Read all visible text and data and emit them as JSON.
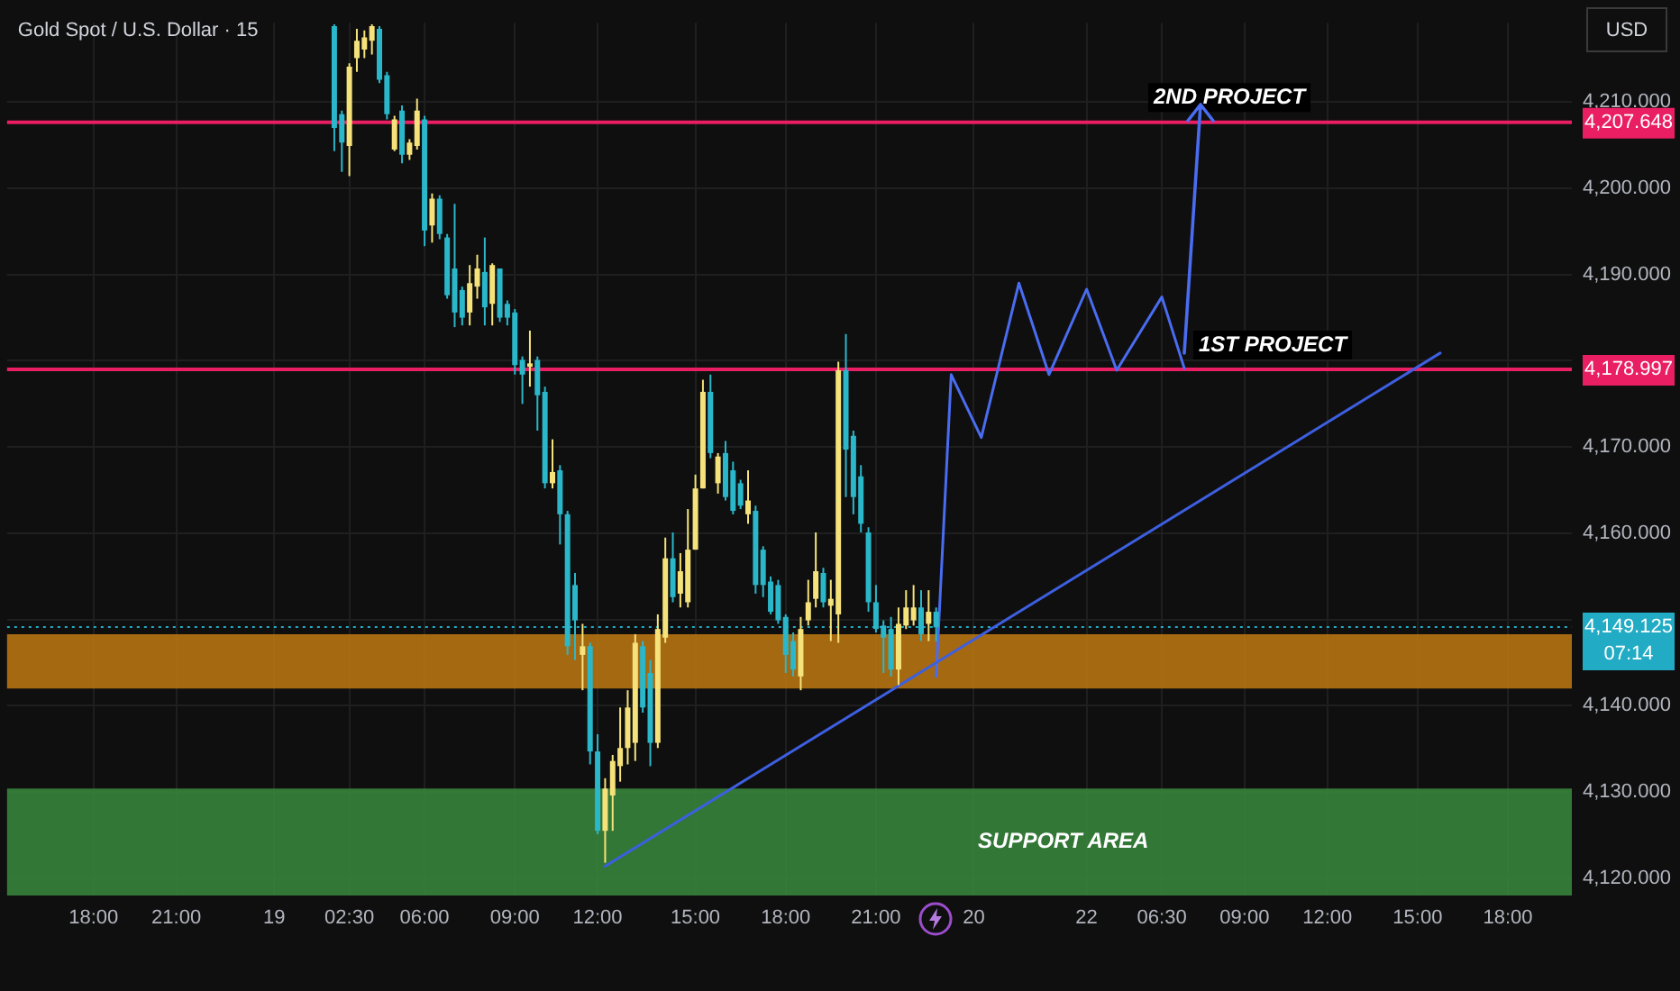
{
  "chart_data": {
    "type": "candlestick",
    "title": "Gold Spot / U.S. Dollar · 15",
    "ylim": [
      4118,
      4219.2
    ],
    "yticks": [
      {
        "value": 4120,
        "label": "4,120.000"
      },
      {
        "value": 4130,
        "label": "4,130.000"
      },
      {
        "value": 4140,
        "label": "4,140.000"
      },
      {
        "value": 4150,
        "label": null
      },
      {
        "value": 4160,
        "label": "4,160.000"
      },
      {
        "value": 4170,
        "label": "4,170.000"
      },
      {
        "value": 4180,
        "label": null
      },
      {
        "value": 4190,
        "label": "4,190.000"
      },
      {
        "value": 4200,
        "label": "4,200.000"
      },
      {
        "value": 4210,
        "label": "4,210.000"
      }
    ],
    "grid": true,
    "categories": [
      null,
      null,
      null,
      null,
      null,
      null,
      null,
      null,
      null,
      null,
      null,
      "18:00",
      null,
      null,
      null,
      null,
      null,
      null,
      null,
      null,
      null,
      null,
      "21:00",
      null,
      null,
      null,
      null,
      null,
      null,
      null,
      null,
      null,
      null,
      null,
      null,
      "19",
      null,
      null,
      null,
      null,
      null,
      null,
      null,
      null,
      null,
      "02:30",
      null,
      null,
      null,
      null,
      null,
      null,
      null,
      null,
      null,
      "06:00",
      null,
      null,
      null,
      null,
      null,
      null,
      null,
      null,
      null,
      null,
      null,
      "09:00",
      null,
      null,
      null,
      null,
      null,
      null,
      null,
      null,
      null,
      null,
      "12:00",
      null,
      null,
      null,
      null,
      null,
      null,
      null,
      null,
      null,
      null,
      null,
      null,
      "15:00",
      null,
      null,
      null,
      null,
      null,
      null,
      null,
      null,
      null,
      null,
      null,
      "18:00",
      null,
      null,
      null,
      null,
      null,
      null,
      null,
      null,
      null,
      null,
      null,
      "21:00",
      null,
      null,
      null,
      null,
      null,
      null,
      null,
      null,
      null,
      null,
      null,
      null,
      "20",
      null,
      null,
      null,
      null,
      null,
      null,
      null,
      null,
      null,
      null,
      null,
      null,
      null,
      null,
      "22",
      null,
      null,
      null,
      null,
      null,
      null,
      null,
      null,
      null,
      "06:30",
      null,
      null,
      null,
      null,
      null,
      null,
      null,
      null,
      null,
      null,
      "09:00",
      null,
      null,
      null,
      null,
      null,
      null,
      null,
      null,
      null,
      null,
      "12:00",
      null,
      null,
      null,
      null,
      null,
      null,
      null,
      null,
      null,
      null,
      null,
      "15:00",
      null,
      null,
      null,
      null,
      null,
      null,
      null,
      null,
      null,
      null,
      null,
      "18:00",
      null,
      null,
      null,
      null,
      null,
      null,
      null,
      null
    ],
    "ohlc": [
      null,
      null,
      null,
      null,
      null,
      null,
      null,
      null,
      null,
      null,
      null,
      null,
      null,
      null,
      null,
      null,
      null,
      null,
      null,
      null,
      null,
      null,
      null,
      null,
      null,
      null,
      null,
      null,
      null,
      null,
      null,
      null,
      null,
      null,
      null,
      null,
      null,
      null,
      null,
      null,
      null,
      null,
      null,
      [
        4218.8,
        4219.0,
        4204.3,
        4207.0
      ],
      [
        4208.6,
        4209.0,
        4201.9,
        4205.3
      ],
      [
        4204.9,
        4214.5,
        4201.4,
        4214.1
      ],
      [
        4215.1,
        4218.5,
        4213.5,
        4217.1
      ],
      [
        4216.1,
        4218.3,
        4215.1,
        4217.5
      ],
      [
        4217.1,
        4219.0,
        4215.5,
        4218.8
      ],
      [
        4218.5,
        4218.8,
        4212.2,
        4212.6
      ],
      [
        4213.1,
        4213.5,
        4208.0,
        4208.6
      ],
      [
        4204.5,
        4208.4,
        4204.3,
        4208.0
      ],
      [
        4209.0,
        4209.6,
        4202.9,
        4203.9
      ],
      [
        4203.9,
        4205.7,
        4203.3,
        4205.3
      ],
      [
        4204.9,
        4210.4,
        4204.5,
        4209.0
      ],
      [
        4208.0,
        4208.4,
        4193.3,
        4195.1
      ],
      [
        4195.7,
        4199.4,
        4193.7,
        4198.8
      ],
      [
        4198.8,
        4199.2,
        4194.1,
        4194.7
      ],
      [
        4194.3,
        4194.7,
        4187.2,
        4187.6
      ],
      [
        4190.7,
        4198.2,
        4183.9,
        4185.6
      ],
      [
        4188.2,
        4188.6,
        4184.1,
        4185.0
      ],
      [
        4185.6,
        4191.1,
        4184.1,
        4189.0
      ],
      [
        4188.6,
        4192.3,
        4187.2,
        4190.7
      ],
      [
        4190.3,
        4194.3,
        4184.1,
        4186.2
      ],
      [
        4186.6,
        4191.3,
        4184.1,
        4191.1
      ],
      [
        4190.7,
        4190.7,
        4184.5,
        4185.0
      ],
      [
        4186.6,
        4187.0,
        4184.1,
        4185.0
      ],
      [
        4185.6,
        4186.0,
        4178.4,
        4179.5
      ],
      [
        4180.1,
        4180.5,
        4175.0,
        4178.4
      ],
      [
        4179.3,
        4183.5,
        4177.0,
        4179.7
      ],
      [
        4180.1,
        4180.5,
        4171.9,
        4176.0
      ],
      [
        4176.4,
        4177.0,
        4165.2,
        4165.8
      ],
      [
        4165.8,
        4170.9,
        4165.2,
        4167.1
      ],
      [
        4167.3,
        4167.9,
        4158.7,
        4162.2
      ],
      [
        4162.2,
        4162.6,
        4145.9,
        4146.9
      ],
      [
        4154.0,
        4155.4,
        4145.3,
        4149.9
      ],
      [
        4145.9,
        4149.5,
        4141.8,
        4146.9
      ],
      [
        4146.9,
        4147.3,
        4133.2,
        4134.7
      ],
      [
        4134.7,
        4136.7,
        4125.1,
        4125.5
      ],
      [
        4125.5,
        4131.6,
        4121.8,
        4130.4
      ],
      [
        4129.6,
        4134.3,
        4125.5,
        4133.6
      ],
      [
        4133.0,
        4139.8,
        4131.2,
        4135.1
      ],
      [
        4135.1,
        4141.8,
        4133.2,
        4139.8
      ],
      [
        4135.7,
        4148.3,
        4133.6,
        4147.3
      ],
      [
        4146.9,
        4147.5,
        4139.2,
        4139.8
      ],
      [
        4143.8,
        4145.3,
        4133.0,
        4135.7
      ],
      [
        4135.7,
        4150.6,
        4135.1,
        4148.9
      ],
      [
        4147.9,
        4159.5,
        4147.3,
        4157.1
      ],
      [
        4157.1,
        4160.1,
        4152.0,
        4152.6
      ],
      [
        4153.0,
        4157.7,
        4151.4,
        4155.6
      ],
      [
        4152.0,
        4162.8,
        4151.4,
        4158.1
      ],
      [
        4158.1,
        4166.8,
        4158.1,
        4165.2
      ],
      [
        4165.2,
        4177.8,
        4165.2,
        4176.4
      ],
      [
        4176.4,
        4178.4,
        4168.7,
        4169.3
      ],
      [
        4165.8,
        4169.3,
        4164.6,
        4168.9
      ],
      [
        4169.3,
        4170.7,
        4163.8,
        4164.2
      ],
      [
        4167.3,
        4168.3,
        4162.2,
        4162.6
      ],
      [
        4165.8,
        4166.2,
        4162.8,
        4163.2
      ],
      [
        4162.2,
        4167.3,
        4161.1,
        4163.8
      ],
      [
        4162.6,
        4163.2,
        4153.0,
        4154.0
      ],
      [
        4158.1,
        4158.5,
        4152.6,
        4154.0
      ],
      [
        4154.4,
        4155.0,
        4150.6,
        4150.9
      ],
      [
        4154.0,
        4154.6,
        4149.5,
        4149.9
      ],
      [
        4150.3,
        4150.6,
        4143.8,
        4145.9
      ],
      [
        4147.5,
        4148.5,
        4143.4,
        4144.2
      ],
      [
        4143.4,
        4150.3,
        4141.8,
        4148.9
      ],
      [
        4149.9,
        4154.6,
        4149.3,
        4152.0
      ],
      [
        4152.4,
        4160.1,
        4151.4,
        4155.6
      ],
      [
        4155.4,
        4156.0,
        4151.4,
        4152.0
      ],
      [
        4151.6,
        4154.6,
        4147.5,
        4152.4
      ],
      [
        4150.6,
        4179.9,
        4147.3,
        4178.9
      ],
      [
        4178.9,
        4183.1,
        4164.2,
        4169.7
      ],
      [
        4171.3,
        4171.9,
        4162.2,
        4164.2
      ],
      [
        4166.6,
        4167.9,
        4160.1,
        4161.1
      ],
      [
        4160.1,
        4160.7,
        4150.9,
        4152.0
      ],
      [
        4152.0,
        4154.0,
        4148.5,
        4148.9
      ],
      [
        4149.3,
        4149.9,
        4143.8,
        4147.9
      ],
      [
        4148.9,
        4150.3,
        4143.4,
        4144.2
      ],
      [
        4144.2,
        4151.4,
        4142.4,
        4149.5
      ],
      [
        4149.3,
        4153.4,
        4148.9,
        4151.4
      ],
      [
        4149.9,
        4154.0,
        4149.3,
        4151.4
      ],
      [
        4151.4,
        4153.4,
        4147.5,
        4148.3
      ],
      [
        4149.5,
        4153.4,
        4147.5,
        4150.9
      ],
      [
        4150.9,
        4151.4,
        4147.5,
        4149.1
      ],
      null,
      null,
      null,
      null,
      null,
      null,
      null,
      null,
      null,
      null,
      null,
      null,
      null,
      null,
      null,
      null,
      null,
      null,
      null,
      null,
      null,
      null,
      null,
      null,
      null,
      null,
      null,
      null,
      null,
      null,
      null,
      null,
      null,
      null,
      null,
      null,
      null,
      null,
      null,
      null,
      null,
      null,
      null,
      null,
      null,
      null,
      null,
      null,
      null,
      null,
      null,
      null,
      null,
      null,
      null,
      null,
      null,
      null,
      null,
      null,
      null,
      null,
      null,
      null,
      null,
      null,
      null,
      null,
      null,
      null,
      null,
      null,
      null,
      null,
      null,
      null,
      null,
      null,
      null,
      null,
      null,
      null,
      null,
      null
    ],
    "colors": [
      null,
      null,
      null,
      null,
      null,
      null,
      null,
      null,
      null,
      null,
      null,
      null,
      null,
      null,
      null,
      null,
      null,
      null,
      null,
      null,
      null,
      null,
      null,
      null,
      null,
      null,
      null,
      null,
      null,
      null,
      null,
      null,
      null,
      null,
      null,
      null,
      null,
      null,
      null,
      null,
      null,
      null,
      null,
      "#2ab7ca",
      "#2ab7ca",
      "#f5e27a",
      "#f5e27a",
      "#f5e27a",
      "#f5e27a",
      "#2ab7ca",
      "#2ab7ca",
      "#f5e27a",
      "#2ab7ca",
      "#f5e27a",
      "#f5e27a",
      "#2ab7ca",
      "#f5e27a",
      "#2ab7ca",
      "#2ab7ca",
      "#2ab7ca",
      "#2ab7ca",
      "#f5e27a",
      "#f5e27a",
      "#2ab7ca",
      "#f5e27a",
      "#2ab7ca",
      "#2ab7ca",
      "#2ab7ca",
      "#2ab7ca",
      "#f5e27a",
      "#2ab7ca",
      "#2ab7ca",
      "#f5e27a",
      "#2ab7ca",
      "#2ab7ca",
      "#2ab7ca",
      "#f5e27a",
      "#2ab7ca",
      "#2ab7ca",
      "#f5e27a",
      "#f5e27a",
      "#f5e27a",
      "#f5e27a",
      "#f5e27a",
      "#2ab7ca",
      "#2ab7ca",
      "#f5e27a",
      "#f5e27a",
      "#2ab7ca",
      "#f5e27a",
      "#f5e27a",
      "#f5e27a",
      "#f5e27a",
      "#2ab7ca",
      "#f5e27a",
      "#2ab7ca",
      "#2ab7ca",
      "#2ab7ca",
      "#f5e27a",
      "#2ab7ca",
      "#2ab7ca",
      "#2ab7ca",
      "#2ab7ca",
      "#2ab7ca",
      "#2ab7ca",
      "#f5e27a",
      "#f5e27a",
      "#f5e27a",
      "#2ab7ca",
      "#f5e27a",
      "#f5e27a",
      "#2ab7ca",
      "#2ab7ca",
      "#2ab7ca",
      "#2ab7ca",
      "#2ab7ca",
      "#2ab7ca",
      "#2ab7ca",
      "#f5e27a",
      "#f5e27a",
      "#f5e27a",
      "#2ab7ca",
      "#f5e27a",
      "#2ab7ca",
      null,
      null,
      null,
      null,
      null,
      null,
      null,
      null,
      null,
      null,
      null,
      null,
      null,
      null,
      null,
      null,
      null,
      null,
      null,
      null,
      null,
      null,
      null,
      null,
      null,
      null,
      null,
      null,
      null,
      null,
      null,
      null,
      null,
      null,
      null,
      null,
      null,
      null,
      null,
      null,
      null,
      null,
      null,
      null,
      null,
      null,
      null,
      null,
      null,
      null,
      null,
      null,
      null,
      null,
      null,
      null,
      null,
      null,
      null,
      null,
      null,
      null,
      null,
      null,
      null,
      null,
      null,
      null,
      null,
      null,
      null,
      null,
      null,
      null,
      null,
      null,
      null,
      null,
      null,
      null,
      null,
      null,
      null,
      null
    ],
    "series": [
      {
        "type": "line",
        "color": "#3d5fe0",
        "line_style": "solid",
        "values": [
          null,
          null,
          null,
          null,
          null,
          null,
          null,
          null,
          null,
          null,
          null,
          null,
          null,
          null,
          null,
          null,
          null,
          null,
          null,
          null,
          null,
          null,
          null,
          null,
          null,
          null,
          null,
          null,
          null,
          null,
          null,
          null,
          null,
          null,
          null,
          null,
          null,
          null,
          null,
          null,
          null,
          null,
          null,
          null,
          null,
          null,
          null,
          null,
          null,
          null,
          null,
          null,
          null,
          null,
          null,
          null,
          null,
          null,
          null,
          null,
          null,
          null,
          null,
          null,
          null,
          null,
          null,
          null,
          null,
          null,
          null,
          null,
          null,
          null,
          null,
          null,
          null,
          null,
          null,
          4121.4,
          null,
          null,
          null,
          null,
          null,
          null,
          null,
          null,
          null,
          null,
          null,
          null,
          null,
          null,
          null,
          null,
          null,
          null,
          null,
          null,
          null,
          null,
          null,
          null,
          null,
          null,
          null,
          null,
          null,
          null,
          null,
          null,
          null,
          null,
          null,
          null,
          null,
          null,
          null,
          null,
          null,
          null,
          null,
          null,
          null,
          null,
          null,
          null,
          null,
          null,
          null,
          null,
          null,
          null,
          null,
          null,
          null,
          null,
          null,
          null,
          null,
          null,
          null,
          null,
          null,
          null,
          null,
          null,
          null,
          null,
          null,
          null,
          null,
          null,
          null,
          null,
          null,
          null,
          null,
          null,
          null,
          null,
          null,
          null,
          null,
          null,
          null,
          null,
          null,
          null,
          null,
          null,
          null,
          null,
          null,
          null,
          null,
          null,
          null,
          null,
          null,
          null,
          null,
          null,
          null,
          null,
          null,
          null,
          null,
          null,
          4180.9,
          null,
          null,
          null,
          null,
          null,
          null,
          null,
          null,
          null,
          null,
          null,
          null,
          null,
          null,
          null,
          null,
          null
        ]
      },
      {
        "type": "line",
        "color": "#4a6cf0",
        "line_style": "solid",
        "values": [
          null,
          null,
          null,
          null,
          null,
          null,
          null,
          null,
          null,
          null,
          null,
          null,
          null,
          null,
          null,
          null,
          null,
          null,
          null,
          null,
          null,
          null,
          null,
          null,
          null,
          null,
          null,
          null,
          null,
          null,
          null,
          null,
          null,
          null,
          null,
          null,
          null,
          null,
          null,
          null,
          null,
          null,
          null,
          null,
          null,
          null,
          null,
          null,
          null,
          null,
          null,
          null,
          null,
          null,
          null,
          null,
          null,
          null,
          null,
          null,
          null,
          null,
          null,
          null,
          null,
          null,
          null,
          null,
          null,
          null,
          null,
          null,
          null,
          null,
          null,
          null,
          null,
          null,
          null,
          null,
          null,
          null,
          null,
          null,
          null,
          null,
          null,
          null,
          null,
          null,
          null,
          null,
          null,
          null,
          null,
          null,
          null,
          null,
          null,
          null,
          null,
          null,
          null,
          null,
          null,
          null,
          null,
          null,
          null,
          null,
          null,
          null,
          null,
          null,
          null,
          null,
          null,
          null,
          null,
          null,
          null,
          null,
          null,
          4143.4,
          null,
          4178.4,
          null,
          null,
          null,
          4171.1,
          null,
          null,
          null,
          null,
          4189.0,
          null,
          null,
          null,
          4178.4,
          null,
          null,
          null,
          null,
          4188.3,
          null,
          null,
          null,
          4178.9,
          null,
          null,
          null,
          null,
          null,
          4187.4,
          null,
          null,
          4179.1,
          null,
          null,
          null,
          null,
          null,
          null,
          null,
          null,
          null,
          null,
          null,
          null,
          null,
          null,
          null,
          null,
          null,
          null,
          null,
          null,
          null,
          null,
          null,
          null,
          null,
          null,
          null,
          null,
          null,
          null,
          null,
          null,
          null,
          null,
          null,
          null,
          null,
          null,
          null,
          null,
          null,
          null,
          null,
          null,
          null,
          null,
          null,
          null,
          null,
          null,
          null
        ]
      }
    ],
    "bands": [
      {
        "axis": "y",
        "from": 4118,
        "to": 4130.4,
        "label": "SUPPORT AREA",
        "color": "#3a8a3e"
      },
      {
        "axis": "y",
        "from": 4142.0,
        "to": 4148.3,
        "label": null,
        "color": "#c07a12"
      }
    ],
    "ref_lines": [
      {
        "axis": "y",
        "value": 4207.648,
        "label": "4,207.648",
        "color": "#e91e63",
        "line_style": "solid"
      },
      {
        "axis": "y",
        "value": 4178.997,
        "label": "4,178.997",
        "color": "#e91e63",
        "line_style": "solid"
      },
      {
        "axis": "y",
        "value": 4149.125,
        "label": "4,149.125\n07:14",
        "color": "#22abc4",
        "line_style": "dotted"
      }
    ],
    "annotations": [
      "USD",
      {
        "text": "2ND PROJECT",
        "y": 4207.6
      },
      {
        "text": "1ST PROJECT",
        "y": 4179.1
      }
    ]
  }
}
